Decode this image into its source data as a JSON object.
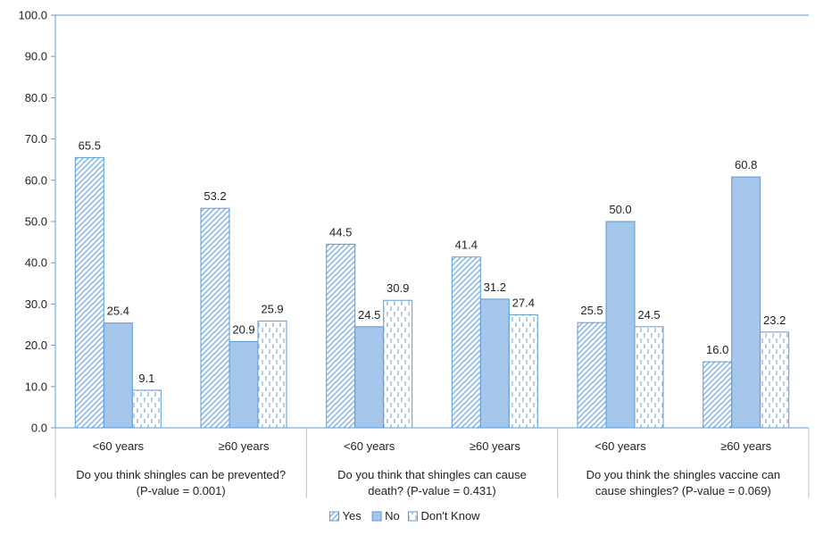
{
  "chart_data": {
    "type": "bar",
    "title": "",
    "xlabel": "",
    "ylabel": "",
    "ylim": [
      0,
      100
    ],
    "y_ticks": [
      "0.0",
      "10.0",
      "20.0",
      "30.0",
      "40.0",
      "50.0",
      "60.0",
      "70.0",
      "80.0",
      "90.0",
      "100.0"
    ],
    "grid": false,
    "legend_position": "bottom",
    "groups": [
      {
        "label_lines": [
          "Do you think shingles can be prevented?",
          "(P-value = 0.001)"
        ],
        "categories": [
          "<60 years",
          "≥60 years"
        ]
      },
      {
        "label_lines": [
          "Do you think that shingles can cause",
          "death? (P-value = 0.431)"
        ],
        "categories": [
          "<60 years",
          "≥60 years"
        ]
      },
      {
        "label_lines": [
          "Do you think the shingles vaccine can",
          "cause shingles? (P-value = 0.069)"
        ],
        "categories": [
          "<60 years",
          "≥60 years"
        ]
      }
    ],
    "series": [
      {
        "name": "Yes",
        "style": "diagonal",
        "values": [
          65.5,
          53.2,
          44.5,
          41.4,
          25.5,
          16.0
        ],
        "labels": [
          "65.5",
          "53.2",
          "44.5",
          "41.4",
          "25.5",
          "16.0"
        ]
      },
      {
        "name": "No",
        "style": "solid",
        "values": [
          25.4,
          20.9,
          24.5,
          31.2,
          50.0,
          60.8
        ],
        "labels": [
          "25.4",
          "20.9",
          "24.5",
          "31.2",
          "50.0",
          "60.8"
        ]
      },
      {
        "name": "Don't Know",
        "style": "dashed",
        "values": [
          9.1,
          25.9,
          30.9,
          27.4,
          24.5,
          23.2
        ],
        "labels": [
          "9.1",
          "25.9",
          "30.9",
          "27.4",
          "24.5",
          "23.2"
        ]
      }
    ],
    "colors": {
      "bar_fill": "#a4c6ea",
      "bar_stroke": "#5b9bd5",
      "axis_line": "#5b9bd5",
      "category_line": "#bfbfbf"
    }
  }
}
